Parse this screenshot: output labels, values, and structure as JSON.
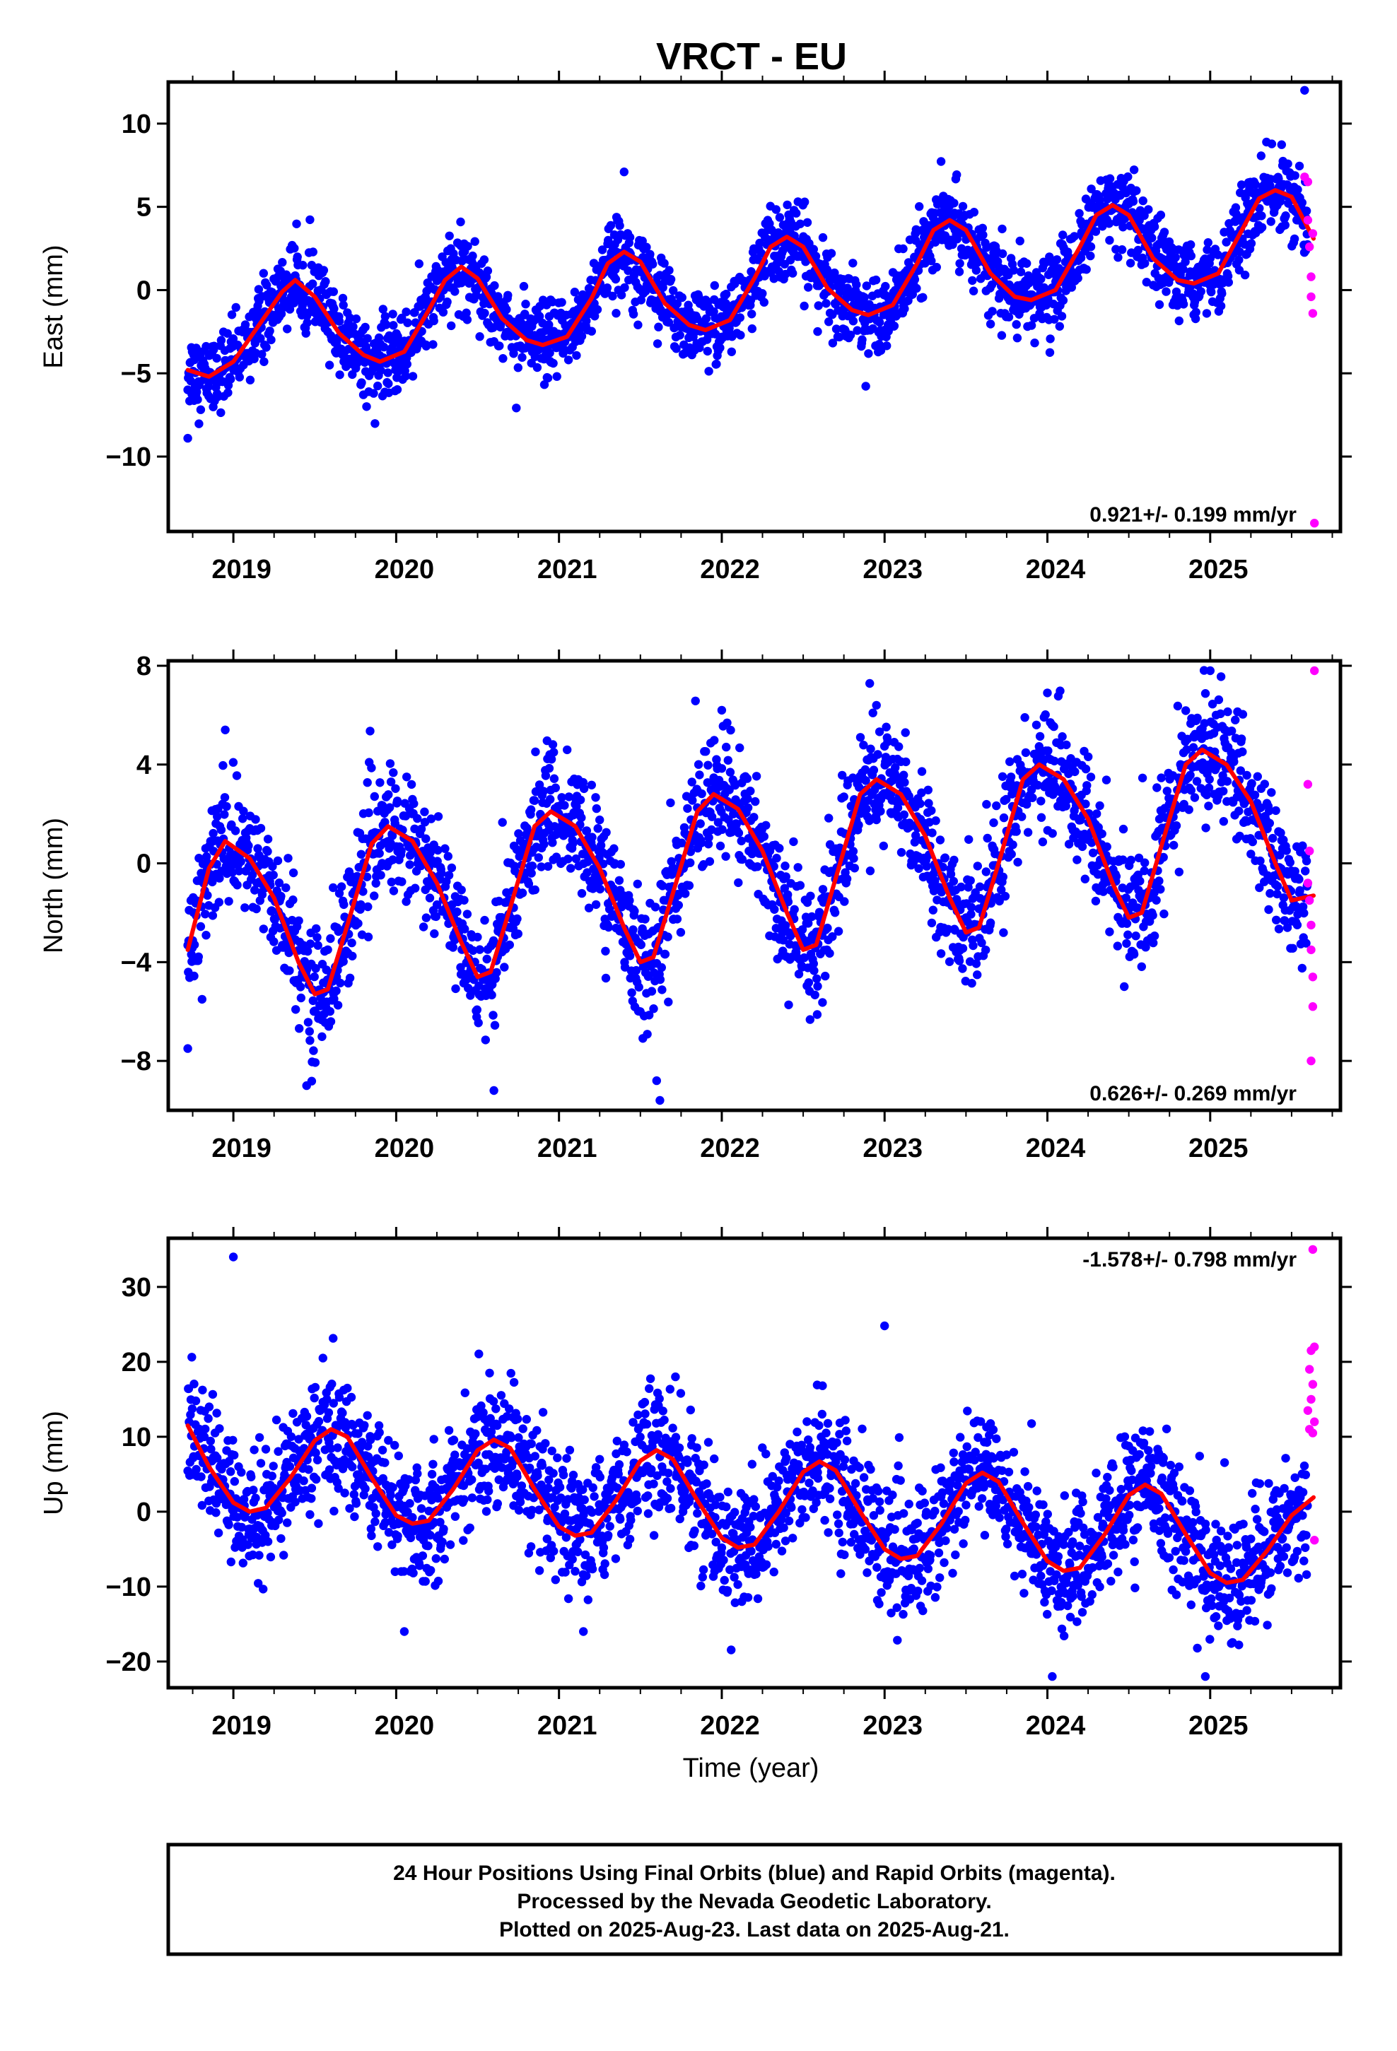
{
  "title": "VRCT - EU",
  "footer": {
    "lines": [
      "24 Hour Positions Using Final Orbits (blue) and Rapid Orbits (magenta).",
      "Processed by the Nevada Geodetic Laboratory.",
      "Plotted on 2025-Aug-23. Last data on 2025-Aug-21."
    ]
  },
  "colors": {
    "final": "#0000ff",
    "rapid": "#ff00ff",
    "model": "#ff0000"
  },
  "chart_data": [
    {
      "type": "scatter",
      "ylabel": "East (mm)",
      "xlim": [
        2018.6,
        2025.8
      ],
      "ylim": [
        -14.5,
        12.5
      ],
      "yticks": [
        -10,
        -5,
        0,
        5,
        10
      ],
      "xticks": [
        2019,
        2020,
        2021,
        2022,
        2023,
        2024,
        2025
      ],
      "rate": "0.921+/- 0.199 mm/yr",
      "rate_position": "bottom-right",
      "model": {
        "x": [
          2018.72,
          2018.85,
          2019.0,
          2019.15,
          2019.3,
          2019.38,
          2019.5,
          2019.65,
          2019.8,
          2019.9,
          2020.05,
          2020.2,
          2020.3,
          2020.4,
          2020.5,
          2020.65,
          2020.8,
          2020.9,
          2021.05,
          2021.2,
          2021.3,
          2021.4,
          2021.5,
          2021.65,
          2021.8,
          2021.9,
          2022.05,
          2022.2,
          2022.3,
          2022.4,
          2022.5,
          2022.65,
          2022.8,
          2022.9,
          2023.05,
          2023.2,
          2023.3,
          2023.4,
          2023.5,
          2023.65,
          2023.8,
          2023.9,
          2024.05,
          2024.2,
          2024.3,
          2024.4,
          2024.5,
          2024.65,
          2024.8,
          2024.9,
          2025.05,
          2025.2,
          2025.3,
          2025.4,
          2025.5,
          2025.64
        ],
        "y": [
          -4.8,
          -5.2,
          -4.3,
          -2.2,
          -0.1,
          0.6,
          -0.4,
          -2.6,
          -3.9,
          -4.3,
          -3.7,
          -1.2,
          0.6,
          1.4,
          0.7,
          -1.7,
          -3.0,
          -3.3,
          -2.8,
          -0.5,
          1.6,
          2.3,
          1.7,
          -0.8,
          -2.1,
          -2.4,
          -1.8,
          0.7,
          2.6,
          3.2,
          2.6,
          0.1,
          -1.2,
          -1.5,
          -0.9,
          1.6,
          3.6,
          4.2,
          3.6,
          1.0,
          -0.4,
          -0.6,
          0.0,
          2.6,
          4.5,
          5.1,
          4.5,
          1.9,
          0.6,
          0.4,
          1.0,
          3.7,
          5.5,
          6.0,
          5.6,
          3.0
        ]
      },
      "rapid": [
        [
          2025.58,
          6.8
        ],
        [
          2025.6,
          4.2
        ],
        [
          2025.61,
          2.6
        ],
        [
          2025.62,
          0.8
        ],
        [
          2025.62,
          -0.4
        ],
        [
          2025.63,
          -1.4
        ],
        [
          2025.64,
          -14.0
        ],
        [
          2025.6,
          6.5
        ],
        [
          2025.63,
          3.4
        ]
      ],
      "outliers": [
        [
          2018.72,
          -8.9
        ],
        [
          2025.58,
          12.0
        ],
        [
          2021.4,
          7.1
        ]
      ]
    },
    {
      "type": "scatter",
      "ylabel": "North (mm)",
      "xlim": [
        2018.6,
        2025.8
      ],
      "ylim": [
        -10.0,
        8.2
      ],
      "yticks": [
        -8,
        -4,
        0,
        4,
        8
      ],
      "xticks": [
        2019,
        2020,
        2021,
        2022,
        2023,
        2024,
        2025
      ],
      "rate": "0.626+/- 0.269 mm/yr",
      "rate_position": "bottom-right",
      "model": {
        "x": [
          2018.72,
          2018.85,
          2018.95,
          2019.1,
          2019.25,
          2019.4,
          2019.5,
          2019.58,
          2019.7,
          2019.85,
          2019.95,
          2020.1,
          2020.25,
          2020.4,
          2020.5,
          2020.58,
          2020.7,
          2020.85,
          2020.95,
          2021.1,
          2021.25,
          2021.4,
          2021.5,
          2021.58,
          2021.7,
          2021.85,
          2021.95,
          2022.1,
          2022.25,
          2022.4,
          2022.5,
          2022.58,
          2022.7,
          2022.85,
          2022.95,
          2023.1,
          2023.25,
          2023.4,
          2023.5,
          2023.58,
          2023.7,
          2023.85,
          2023.95,
          2024.1,
          2024.25,
          2024.4,
          2024.5,
          2024.58,
          2024.7,
          2024.85,
          2024.95,
          2025.1,
          2025.25,
          2025.4,
          2025.5,
          2025.64
        ],
        "y": [
          -3.5,
          -0.2,
          0.9,
          0.2,
          -1.4,
          -4.0,
          -5.3,
          -5.1,
          -2.5,
          0.8,
          1.5,
          0.9,
          -0.8,
          -3.2,
          -4.6,
          -4.4,
          -1.8,
          1.5,
          2.1,
          1.5,
          -0.2,
          -2.6,
          -4.0,
          -3.8,
          -1.2,
          2.1,
          2.8,
          2.2,
          0.5,
          -2.0,
          -3.5,
          -3.3,
          -0.6,
          2.8,
          3.4,
          2.8,
          1.1,
          -1.4,
          -2.8,
          -2.6,
          0.0,
          3.4,
          4.0,
          3.4,
          1.8,
          -0.8,
          -2.2,
          -2.0,
          0.7,
          4.0,
          4.6,
          4.0,
          2.5,
          0.0,
          -1.5,
          -1.3
        ]
      },
      "rapid": [
        [
          2025.6,
          3.2
        ],
        [
          2025.61,
          0.5
        ],
        [
          2025.61,
          -1.5
        ],
        [
          2025.62,
          -2.5
        ],
        [
          2025.62,
          -3.5
        ],
        [
          2025.63,
          -4.6
        ],
        [
          2025.63,
          -5.8
        ],
        [
          2025.62,
          -8.0
        ],
        [
          2025.64,
          7.8
        ],
        [
          2025.6,
          -0.8
        ]
      ],
      "outliers": [
        [
          2018.72,
          -7.5
        ],
        [
          2019.45,
          -9.0
        ],
        [
          2020.6,
          -9.2
        ],
        [
          2021.62,
          -9.6
        ],
        [
          2021.6,
          -8.8
        ],
        [
          2018.95,
          5.4
        ],
        [
          2022.0,
          6.2
        ],
        [
          2024.0,
          6.9
        ],
        [
          2025.0,
          7.8
        ],
        [
          2022.95,
          6.4
        ]
      ]
    },
    {
      "type": "scatter",
      "ylabel": "Up (mm)",
      "xlabel": "Time (year)",
      "xlim": [
        2018.6,
        2025.8
      ],
      "ylim": [
        -23.5,
        36.5
      ],
      "yticks": [
        -20,
        -10,
        0,
        10,
        20,
        30
      ],
      "xticks": [
        2019,
        2020,
        2021,
        2022,
        2023,
        2024,
        2025
      ],
      "rate": "-1.578+/- 0.798 mm/yr",
      "rate_position": "top-right",
      "model": {
        "x": [
          2018.72,
          2018.85,
          2019.0,
          2019.1,
          2019.2,
          2019.35,
          2019.5,
          2019.6,
          2019.7,
          2019.85,
          2020.0,
          2020.1,
          2020.2,
          2020.35,
          2020.5,
          2020.6,
          2020.7,
          2020.85,
          2021.0,
          2021.1,
          2021.2,
          2021.35,
          2021.5,
          2021.6,
          2021.7,
          2021.85,
          2022.0,
          2022.1,
          2022.2,
          2022.35,
          2022.5,
          2022.6,
          2022.7,
          2022.85,
          2023.0,
          2023.1,
          2023.2,
          2023.35,
          2023.5,
          2023.6,
          2023.7,
          2023.85,
          2024.0,
          2024.1,
          2024.2,
          2024.35,
          2024.5,
          2024.6,
          2024.7,
          2024.85,
          2025.0,
          2025.1,
          2025.2,
          2025.35,
          2025.5,
          2025.64
        ],
        "y": [
          11.5,
          6.0,
          1.2,
          0.0,
          0.5,
          4.5,
          9.5,
          11.0,
          10.0,
          4.5,
          -0.5,
          -1.6,
          -1.2,
          3.0,
          8.2,
          9.6,
          8.5,
          3.0,
          -2.0,
          -3.2,
          -2.8,
          1.5,
          6.8,
          8.2,
          7.0,
          1.5,
          -3.5,
          -4.8,
          -4.4,
          0.0,
          5.3,
          6.7,
          5.5,
          0.0,
          -5.0,
          -6.3,
          -5.9,
          -1.6,
          3.8,
          5.2,
          4.0,
          -1.5,
          -6.6,
          -7.9,
          -7.5,
          -3.1,
          2.2,
          3.6,
          2.4,
          -3.0,
          -8.2,
          -9.5,
          -9.1,
          -5.2,
          -0.5,
          2.0
        ]
      },
      "rapid": [
        [
          2025.63,
          35.0
        ],
        [
          2025.62,
          21.5
        ],
        [
          2025.61,
          19.0
        ],
        [
          2025.63,
          17.0
        ],
        [
          2025.62,
          15.0
        ],
        [
          2025.6,
          13.5
        ],
        [
          2025.64,
          12.0
        ],
        [
          2025.61,
          11.0
        ],
        [
          2025.63,
          10.5
        ],
        [
          2025.64,
          -3.8
        ],
        [
          2025.64,
          22.0
        ]
      ],
      "outliers": [
        [
          2019.0,
          34.0
        ],
        [
          2023.0,
          24.8
        ],
        [
          2019.55,
          20.5
        ],
        [
          2024.03,
          -22.0
        ],
        [
          2024.97,
          -22.0
        ],
        [
          2020.05,
          -16.0
        ],
        [
          2021.15,
          -16.0
        ]
      ]
    }
  ]
}
